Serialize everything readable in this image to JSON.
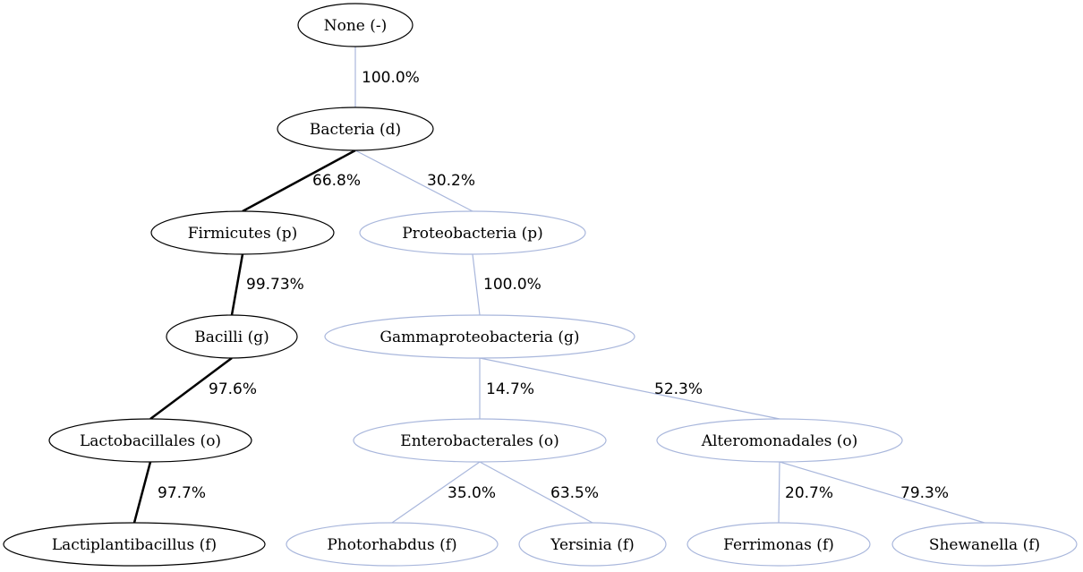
{
  "diagram": {
    "colors": {
      "primary": "#000000",
      "secondary": "#a9b7dc"
    },
    "nodes": [
      {
        "id": "none",
        "label": "None (-)",
        "style": "primary"
      },
      {
        "id": "bacteria",
        "label": "Bacteria (d)",
        "style": "primary"
      },
      {
        "id": "firmicutes",
        "label": "Firmicutes (p)",
        "style": "primary"
      },
      {
        "id": "proteobacteria",
        "label": "Proteobacteria (p)",
        "style": "secondary"
      },
      {
        "id": "bacilli",
        "label": "Bacilli (g)",
        "style": "primary"
      },
      {
        "id": "gammaproteobacteria",
        "label": "Gammaproteobacteria (g)",
        "style": "secondary"
      },
      {
        "id": "lactobacillales",
        "label": "Lactobacillales (o)",
        "style": "primary"
      },
      {
        "id": "enterobacterales",
        "label": "Enterobacterales (o)",
        "style": "secondary"
      },
      {
        "id": "alteromonadales",
        "label": "Alteromonadales (o)",
        "style": "secondary"
      },
      {
        "id": "lactiplantibacillus",
        "label": "Lactiplantibacillus (f)",
        "style": "primary"
      },
      {
        "id": "photorhabdus",
        "label": "Photorhabdus (f)",
        "style": "secondary"
      },
      {
        "id": "yersinia",
        "label": "Yersinia (f)",
        "style": "secondary"
      },
      {
        "id": "ferrimonas",
        "label": "Ferrimonas (f)",
        "style": "secondary"
      },
      {
        "id": "shewanella",
        "label": "Shewanella (f)",
        "style": "secondary"
      }
    ],
    "edges": [
      {
        "from": "none",
        "to": "bacteria",
        "label": "100.0%",
        "style": "secondary"
      },
      {
        "from": "bacteria",
        "to": "firmicutes",
        "label": "66.8%",
        "style": "primary"
      },
      {
        "from": "bacteria",
        "to": "proteobacteria",
        "label": "30.2%",
        "style": "secondary"
      },
      {
        "from": "firmicutes",
        "to": "bacilli",
        "label": "99.73%",
        "style": "primary"
      },
      {
        "from": "proteobacteria",
        "to": "gammaproteobacteria",
        "label": "100.0%",
        "style": "secondary"
      },
      {
        "from": "bacilli",
        "to": "lactobacillales",
        "label": "97.6%",
        "style": "primary"
      },
      {
        "from": "gammaproteobacteria",
        "to": "enterobacterales",
        "label": "14.7%",
        "style": "secondary"
      },
      {
        "from": "gammaproteobacteria",
        "to": "alteromonadales",
        "label": "52.3%",
        "style": "secondary"
      },
      {
        "from": "lactobacillales",
        "to": "lactiplantibacillus",
        "label": "97.7%",
        "style": "primary"
      },
      {
        "from": "enterobacterales",
        "to": "photorhabdus",
        "label": "35.0%",
        "style": "secondary"
      },
      {
        "from": "enterobacterales",
        "to": "yersinia",
        "label": "63.5%",
        "style": "secondary"
      },
      {
        "from": "alteromonadales",
        "to": "ferrimonas",
        "label": "20.7%",
        "style": "secondary"
      },
      {
        "from": "alteromonadales",
        "to": "shewanella",
        "label": "79.3%",
        "style": "secondary"
      }
    ]
  }
}
